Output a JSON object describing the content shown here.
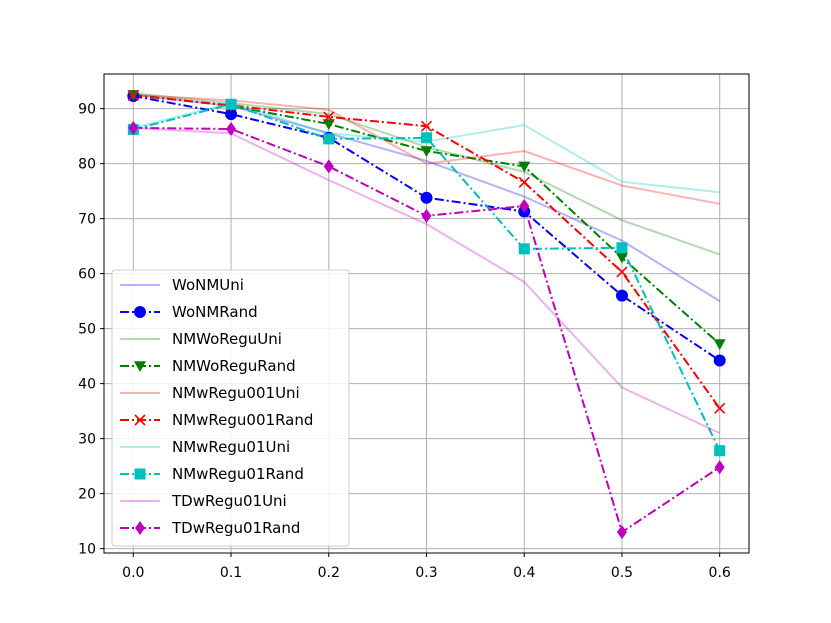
{
  "chart_data": {
    "type": "line",
    "title": "",
    "xlabel": "",
    "ylabel": "",
    "x": [
      0.0,
      0.1,
      0.2,
      0.3,
      0.4,
      0.5,
      0.6
    ],
    "x_ticks": [
      "0.0",
      "0.1",
      "0.2",
      "0.3",
      "0.4",
      "0.5",
      "0.6"
    ],
    "y_ticks": [
      "10",
      "20",
      "30",
      "40",
      "50",
      "60",
      "70",
      "80",
      "90"
    ],
    "xlim": [
      -0.03,
      0.63
    ],
    "ylim": [
      9.2,
      96.3
    ],
    "grid": true,
    "legend_position": "lower-left",
    "series": [
      {
        "name": "WoNMUni",
        "color": "#0000ff",
        "alpha": 0.3,
        "dash": "solid",
        "marker": "none",
        "values": [
          92.5,
          90.5,
          85.5,
          80.5,
          74.0,
          66.0,
          55.0
        ]
      },
      {
        "name": "WoNMRand",
        "color": "#0000ff",
        "alpha": 1,
        "dash": "dashdot",
        "marker": "circle",
        "values": [
          92.3,
          89.0,
          84.7,
          73.8,
          71.3,
          56.0,
          44.2
        ]
      },
      {
        "name": "NMWoReguUni",
        "color": "#008000",
        "alpha": 0.3,
        "dash": "solid",
        "marker": "none",
        "values": [
          92.8,
          91.0,
          89.0,
          83.0,
          78.5,
          69.7,
          63.5
        ]
      },
      {
        "name": "NMWoReguRand",
        "color": "#008000",
        "alpha": 1,
        "dash": "dashdot",
        "marker": "triangle-down",
        "values": [
          92.5,
          90.5,
          87.2,
          82.3,
          79.5,
          62.9,
          47.2
        ]
      },
      {
        "name": "NMwRegu001Uni",
        "color": "#ff0000",
        "alpha": 0.3,
        "dash": "solid",
        "marker": "none",
        "values": [
          92.5,
          91.5,
          89.8,
          80.0,
          82.3,
          76.0,
          72.7
        ]
      },
      {
        "name": "NMwRegu001Rand",
        "color": "#ff0000",
        "alpha": 1,
        "dash": "dashdot",
        "marker": "x",
        "values": [
          92.4,
          90.6,
          88.5,
          86.8,
          76.6,
          60.3,
          35.5
        ]
      },
      {
        "name": "NMwRegu01Uni",
        "color": "#00bfbf",
        "alpha": 0.3,
        "dash": "solid",
        "marker": "none",
        "values": [
          86.5,
          91.0,
          85.5,
          84.0,
          87.0,
          76.7,
          74.8
        ]
      },
      {
        "name": "NMwRegu01Rand",
        "color": "#00bfbf",
        "alpha": 1,
        "dash": "dashdot",
        "marker": "square",
        "values": [
          86.2,
          90.8,
          84.5,
          84.7,
          64.5,
          64.7,
          27.8
        ]
      },
      {
        "name": "TDwRegu01Uni",
        "color": "#bf00bf",
        "alpha": 0.3,
        "dash": "solid",
        "marker": "none",
        "values": [
          86.5,
          85.5,
          77.0,
          69.0,
          58.5,
          39.3,
          31.0
        ]
      },
      {
        "name": "TDwRegu01Rand",
        "color": "#bf00bf",
        "alpha": 1,
        "dash": "dashdot",
        "marker": "diamond",
        "values": [
          86.5,
          86.3,
          79.5,
          70.5,
          72.3,
          13.0,
          24.8
        ]
      }
    ]
  }
}
